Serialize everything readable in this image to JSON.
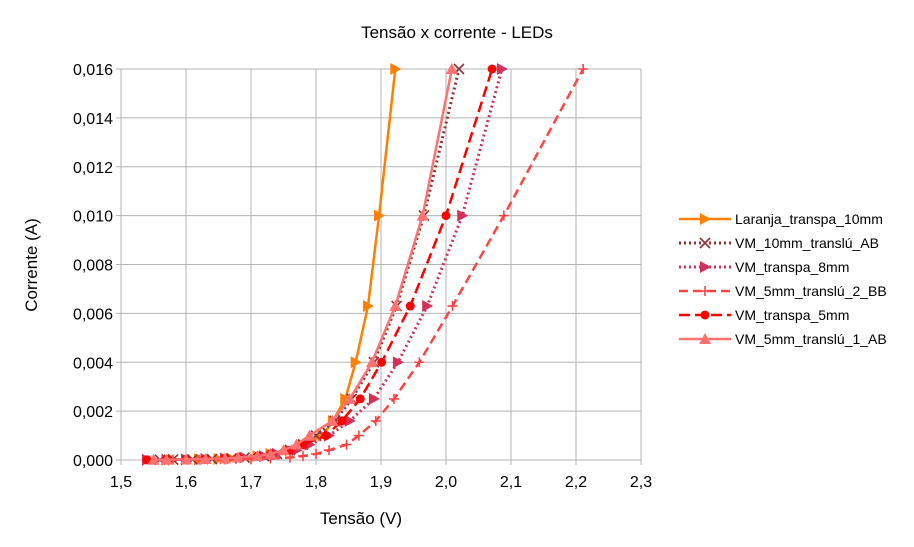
{
  "chart_data": {
    "type": "line",
    "title": "Tensão x corrente - LEDs",
    "xlabel": "Tensão (V)",
    "ylabel": "Corrente (A)",
    "xlim": [
      1.5,
      2.3
    ],
    "ylim": [
      0,
      0.016
    ],
    "xticks": [
      "1,5",
      "1,6",
      "1,7",
      "1,8",
      "1,9",
      "2,0",
      "2,1",
      "2,2",
      "2,3"
    ],
    "yticks": [
      "0,000",
      "0,002",
      "0,004",
      "0,006",
      "0,008",
      "0,010",
      "0,012",
      "0,014",
      "0,016"
    ],
    "grid": true,
    "legend_position": "right",
    "y": [
      1e-05,
      1.6e-05,
      2.5e-05,
      4e-05,
      6.3e-05,
      0.0001,
      0.00016,
      0.00025,
      0.0004,
      0.00063,
      0.001,
      0.0016,
      0.0025,
      0.004,
      0.0063,
      0.01,
      0.016
    ],
    "series": [
      {
        "name": "Laranja_transpa_10mm",
        "color": "#ff8000",
        "dash": "solid",
        "marker": "triangle-right",
        "x": [
          1.58,
          1.6,
          1.62,
          1.65,
          1.67,
          1.69,
          1.71,
          1.73,
          1.76,
          1.78,
          1.81,
          1.826,
          1.845,
          1.861,
          1.88,
          1.897,
          1.922
        ]
      },
      {
        "name": "VM_10mm_translú_AB",
        "color": "#8b3535",
        "dash": "dot",
        "marker": "x",
        "x": [
          1.56,
          1.58,
          1.61,
          1.64,
          1.67,
          1.69,
          1.72,
          1.74,
          1.76,
          1.78,
          1.8,
          1.829,
          1.855,
          1.889,
          1.924,
          1.966,
          2.02
        ]
      },
      {
        "name": "VM_transpa_8mm",
        "color": "#d2325a",
        "dash": "dot",
        "marker": "triangle-right",
        "x": [
          1.54,
          1.57,
          1.6,
          1.63,
          1.66,
          1.69,
          1.72,
          1.74,
          1.77,
          1.79,
          1.82,
          1.852,
          1.889,
          1.926,
          1.971,
          2.025,
          2.086
        ]
      },
      {
        "name": "VM_5mm_translú_2_BB",
        "color": "#ff4444",
        "dash": "dash",
        "marker": "plus",
        "x": [
          1.58,
          1.62,
          1.66,
          1.7,
          1.73,
          1.76,
          1.78,
          1.8,
          1.82,
          1.847,
          1.866,
          1.892,
          1.92,
          1.959,
          2.01,
          2.089,
          2.211
        ]
      },
      {
        "name": "VM_transpa_5mm",
        "color": "#ff0000",
        "dash": "longdash",
        "marker": "circle",
        "x": [
          1.54,
          1.57,
          1.6,
          1.63,
          1.66,
          1.68,
          1.71,
          1.73,
          1.76,
          1.78,
          1.815,
          1.84,
          1.868,
          1.901,
          1.945,
          2.0,
          2.071
        ]
      },
      {
        "name": "VM_5mm_translú_1_AB",
        "color": "#ff7272",
        "dash": "solid",
        "marker": "triangle-up",
        "x": [
          1.55,
          1.57,
          1.6,
          1.63,
          1.66,
          1.68,
          1.71,
          1.73,
          1.75,
          1.77,
          1.79,
          1.825,
          1.852,
          1.886,
          1.922,
          1.964,
          2.009
        ]
      }
    ]
  }
}
